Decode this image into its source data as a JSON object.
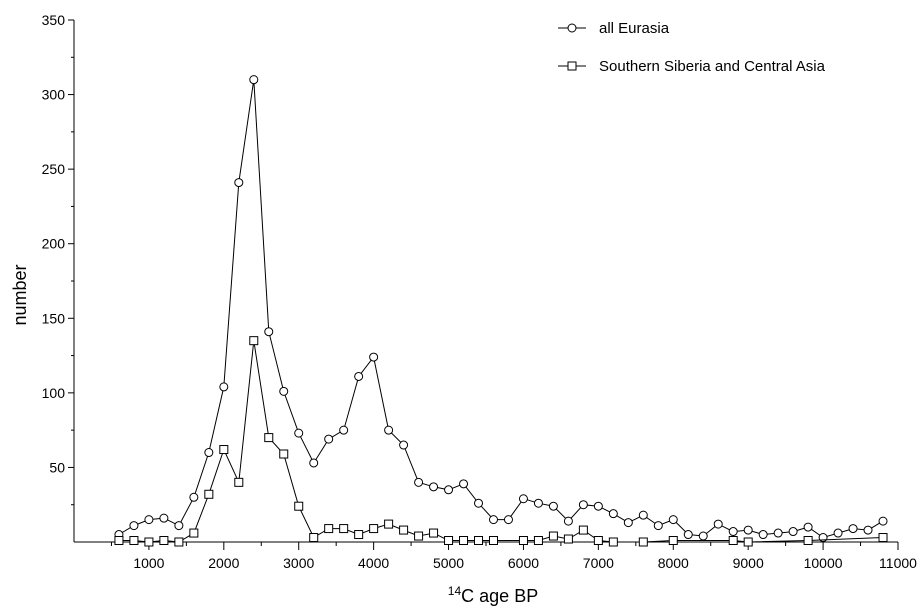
{
  "chart_data": {
    "type": "line",
    "xlabel_sup": "14",
    "xlabel": "C age BP",
    "ylabel": "number",
    "xlim": [
      0,
      11000
    ],
    "ylim": [
      0,
      350
    ],
    "x_ticks": [
      1000,
      2000,
      3000,
      4000,
      5000,
      6000,
      7000,
      8000,
      9000,
      10000,
      11000
    ],
    "y_ticks": [
      50,
      100,
      150,
      200,
      250,
      300,
      350
    ],
    "legend_position": "top-right",
    "grid": false,
    "series": [
      {
        "name": "all Eurasia",
        "marker": "circle",
        "x": [
          600,
          800,
          1000,
          1200,
          1400,
          1600,
          1800,
          2000,
          2200,
          2400,
          2600,
          2800,
          3000,
          3200,
          3400,
          3600,
          3800,
          4000,
          4200,
          4400,
          4600,
          4800,
          5000,
          5200,
          5400,
          5600,
          5800,
          6000,
          6200,
          6400,
          6600,
          6800,
          7000,
          7200,
          7400,
          7600,
          7800,
          8000,
          8200,
          8400,
          8600,
          8800,
          9000,
          9200,
          9400,
          9600,
          9800,
          10000,
          10200,
          10400,
          10600,
          10800
        ],
        "y": [
          5,
          11,
          15,
          16,
          11,
          30,
          60,
          104,
          241,
          310,
          141,
          101,
          73,
          53,
          69,
          75,
          111,
          124,
          75,
          65,
          40,
          37,
          35,
          39,
          26,
          15,
          15,
          29,
          26,
          24,
          14,
          25,
          24,
          19,
          13,
          18,
          11,
          15,
          5,
          4,
          12,
          7,
          8,
          5,
          6,
          7,
          10,
          3,
          6,
          9,
          8,
          14
        ]
      },
      {
        "name": "Southern Siberia and Central Asia",
        "marker": "square",
        "x": [
          600,
          800,
          1000,
          1200,
          1400,
          1600,
          1800,
          2000,
          2200,
          2400,
          2600,
          2800,
          3000,
          3200,
          3400,
          3600,
          3800,
          4000,
          4200,
          4400,
          4600,
          4800,
          5000,
          5200,
          5400,
          5600,
          6000,
          6200,
          6400,
          6600,
          6800,
          7000,
          7200,
          7600,
          8000,
          8800,
          9000,
          9800,
          10800
        ],
        "y": [
          1,
          1,
          0,
          1,
          0,
          6,
          32,
          62,
          40,
          135,
          70,
          59,
          24,
          3,
          9,
          9,
          5,
          9,
          12,
          8,
          4,
          6,
          1,
          1,
          1,
          1,
          1,
          1,
          4,
          2,
          8,
          1,
          0,
          0,
          1,
          1,
          0,
          1,
          3
        ]
      }
    ]
  }
}
